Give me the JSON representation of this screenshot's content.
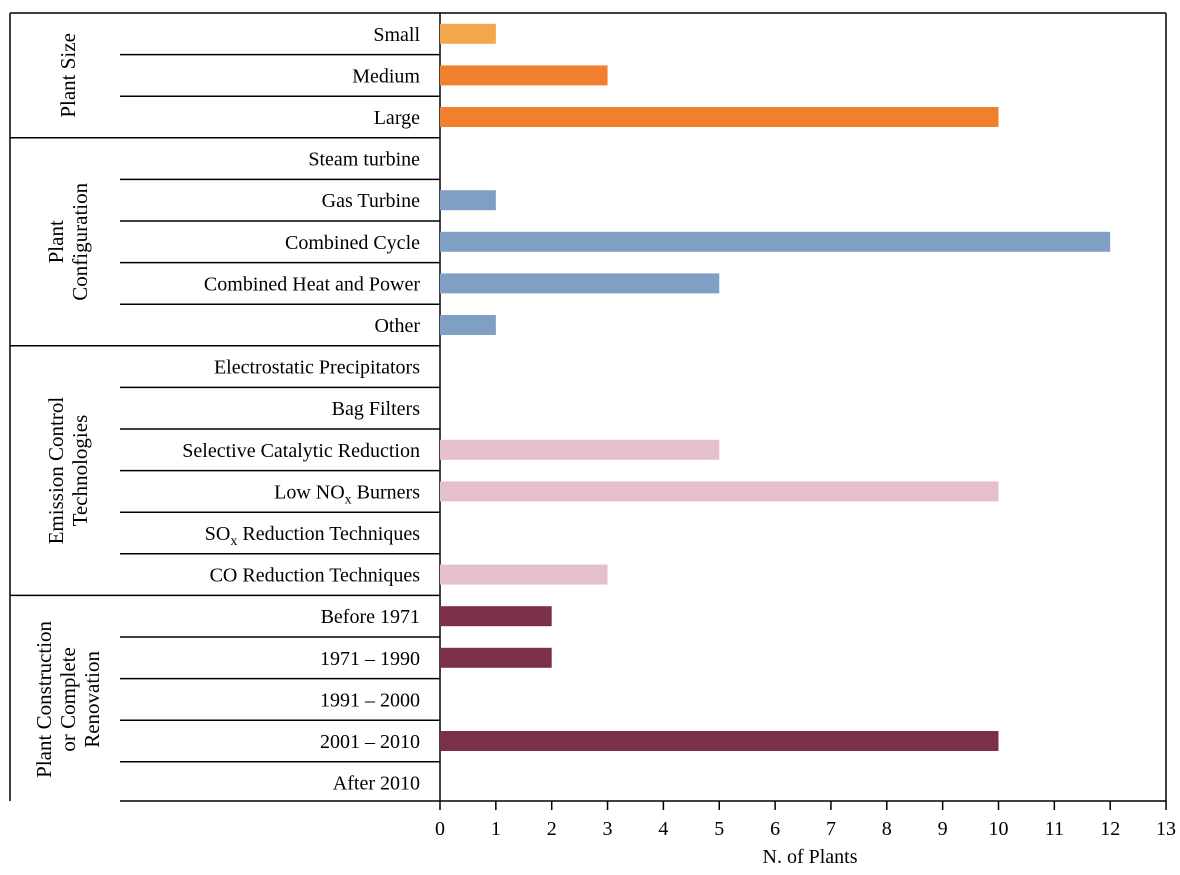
{
  "chart_data": {
    "type": "bar",
    "orientation": "horizontal",
    "xlabel": "N. of Plants",
    "xlim": [
      0,
      13
    ],
    "xticks": [
      "0",
      "1",
      "2",
      "3",
      "4",
      "5",
      "6",
      "7",
      "8",
      "9",
      "10",
      "11",
      "12",
      "13"
    ],
    "grid": false,
    "groups": [
      {
        "name_lines": [
          "Plant Size"
        ],
        "color": "#f0802e",
        "categories": [
          {
            "label": "Small",
            "value": 1,
            "color": "#f4a64c"
          },
          {
            "label": "Medium",
            "value": 3
          },
          {
            "label": "Large",
            "value": 10
          }
        ]
      },
      {
        "name_lines": [
          "Plant",
          "Configuration"
        ],
        "color": "#7f9fc4",
        "categories": [
          {
            "label": "Steam turbine",
            "value": 0
          },
          {
            "label": "Gas Turbine",
            "value": 1
          },
          {
            "label": "Combined Cycle",
            "value": 12
          },
          {
            "label": "Combined Heat and Power",
            "value": 5
          },
          {
            "label": "Other",
            "value": 1
          }
        ]
      },
      {
        "name_lines": [
          "Emission Control",
          "Technologies"
        ],
        "color": "#e5bfcc",
        "categories": [
          {
            "label": "Electrostatic Precipitators",
            "value": 0
          },
          {
            "label": "Bag Filters",
            "value": 0
          },
          {
            "label": "Selective Catalytic Reduction",
            "value": 5
          },
          {
            "label": "Low NOx Burners",
            "value": 10,
            "label_parts": [
              "Low NO",
              "x",
              " Burners"
            ]
          },
          {
            "label": "SOx Reduction Techniques",
            "value": 0,
            "label_parts": [
              "SO",
              "x",
              " Reduction Techniques"
            ]
          },
          {
            "label": "CO Reduction Techniques",
            "value": 3
          }
        ]
      },
      {
        "name_lines": [
          "Plant Construction",
          "or Complete",
          "Renovation"
        ],
        "color": "#7b2f4b",
        "categories": [
          {
            "label": "Before 1971",
            "value": 2
          },
          {
            "label": "1971 – 1990",
            "value": 2
          },
          {
            "label": "1991 – 2000",
            "value": 0
          },
          {
            "label": "2001 – 2010",
            "value": 10
          },
          {
            "label": "After 2010",
            "value": 0
          }
        ]
      }
    ]
  }
}
